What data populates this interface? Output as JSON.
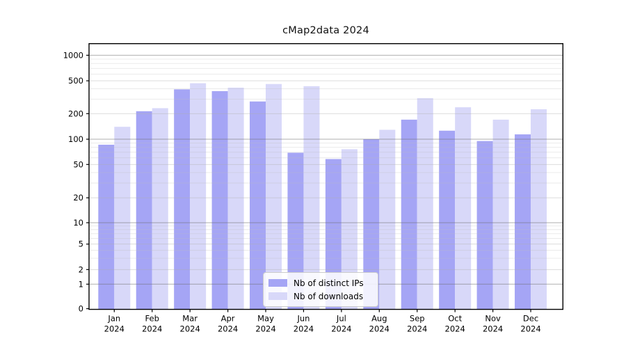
{
  "title": "cMap2data 2024",
  "colors": {
    "ips_bar": "#a5a5f5",
    "downloads_bar": "#d8d8f9",
    "grid_major": "#ababab",
    "grid_minor_labeled": "#dcdcdc",
    "grid_minor": "#ebebeb",
    "axis": "#000000",
    "text": "#000000"
  },
  "chart_data": {
    "type": "bar",
    "title": "cMap2data 2024",
    "categories": [
      "Jan 2024",
      "Feb 2024",
      "Mar 2024",
      "Apr 2024",
      "May 2024",
      "Jun 2024",
      "Jul 2024",
      "Aug 2024",
      "Sep 2024",
      "Oct 2024",
      "Nov 2024",
      "Dec 2024"
    ],
    "series": [
      {
        "name": "Nb of distinct IPs",
        "values": [
          86,
          214,
          394,
          375,
          281,
          69,
          58,
          100,
          170,
          126,
          95,
          114
        ]
      },
      {
        "name": "Nb of downloads",
        "values": [
          140,
          233,
          467,
          413,
          457,
          430,
          76,
          129,
          308,
          239,
          170,
          226
        ]
      }
    ],
    "xlabel": "",
    "ylabel": "",
    "yscale": "symlog",
    "yticks": [
      0,
      1,
      2,
      5,
      10,
      20,
      50,
      100,
      200,
      500,
      1000
    ],
    "ylim": [
      0,
      1380
    ],
    "grid": true,
    "legend_position": "lower center"
  }
}
